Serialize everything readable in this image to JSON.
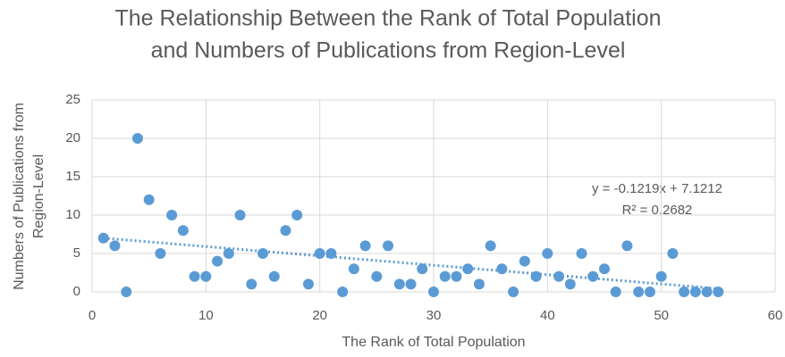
{
  "chart_data": {
    "type": "scatter",
    "title": [
      "The Relationship Between the Rank of Total Population",
      "and Numbers of Publications from Region-Level"
    ],
    "x_label": "The Rank of Total Population",
    "y_label": [
      "Numbers of Publications from",
      "Region-Level"
    ],
    "annotations": [
      "y = -0.1219x + 7.1212",
      "R² = 0.2682"
    ],
    "trendline": true,
    "color": "#5b9bd5",
    "grid": true,
    "x": [
      1,
      2,
      3,
      4,
      5,
      6,
      7,
      8,
      9,
      10,
      11,
      12,
      13,
      14,
      15,
      16,
      17,
      18,
      19,
      20,
      21,
      22,
      23,
      24,
      25,
      26,
      27,
      28,
      29,
      30,
      31,
      32,
      33,
      34,
      35,
      36,
      37,
      38,
      39,
      40,
      41,
      42,
      43,
      44,
      45,
      46,
      47,
      48,
      49,
      50,
      51,
      52,
      53,
      54,
      55
    ],
    "values": [
      7,
      6,
      0,
      20,
      12,
      5,
      10,
      8,
      2,
      2,
      4,
      5,
      10,
      1,
      5,
      2,
      8,
      10,
      1,
      5,
      5,
      0,
      3,
      6,
      2,
      6,
      1,
      1,
      3,
      0,
      2,
      2,
      3,
      1,
      6,
      3,
      0,
      4,
      2,
      5,
      2,
      1,
      5,
      2,
      3,
      0,
      6,
      0,
      0,
      2,
      5,
      0,
      0,
      0,
      0
    ],
    "xlim": [
      0,
      60
    ],
    "xticks": [
      0,
      10,
      20,
      30,
      40,
      50,
      60
    ],
    "ylim": [
      0,
      25
    ],
    "yticks": [
      0,
      5,
      10,
      15,
      20,
      25
    ]
  }
}
